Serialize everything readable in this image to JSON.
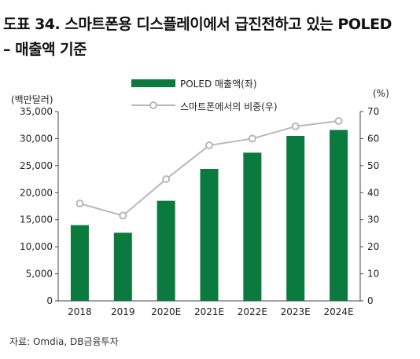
{
  "title_line1": "도표 34. 스마트폰용 디스플레이에서 급진전하고 있는 POLED",
  "title_line2": "– 매출액 기준",
  "source": "자료: Omdia, DB금융투자",
  "colors": {
    "bar": "#0b7a3e",
    "line": "#b8b8b8",
    "marker_fill": "#ffffff"
  },
  "chart_data": {
    "type": "bar",
    "categories": [
      "2018",
      "2019",
      "2020E",
      "2021E",
      "2022E",
      "2023E",
      "2024E"
    ],
    "series": [
      {
        "name": "POLED 매출액(좌)",
        "type": "bar",
        "axis": "left",
        "values": [
          14000,
          12600,
          18500,
          24400,
          27400,
          30500,
          31600
        ]
      },
      {
        "name": "스마트폰에서의 비중(우)",
        "type": "line",
        "axis": "right",
        "values": [
          36,
          31.5,
          45,
          57.5,
          60,
          64.5,
          66.5
        ]
      }
    ],
    "left_axis": {
      "unit": "(백만달러)",
      "ylim": [
        0,
        35000
      ],
      "ticks": [
        "0",
        "5,000",
        "10,000",
        "15,000",
        "20,000",
        "25,000",
        "30,000",
        "35,000"
      ]
    },
    "right_axis": {
      "unit": "(%)",
      "ylim": [
        0,
        70
      ],
      "ticks": [
        "0",
        "10",
        "20",
        "30",
        "40",
        "50",
        "60",
        "70"
      ]
    },
    "grid": false,
    "legend": "top"
  }
}
